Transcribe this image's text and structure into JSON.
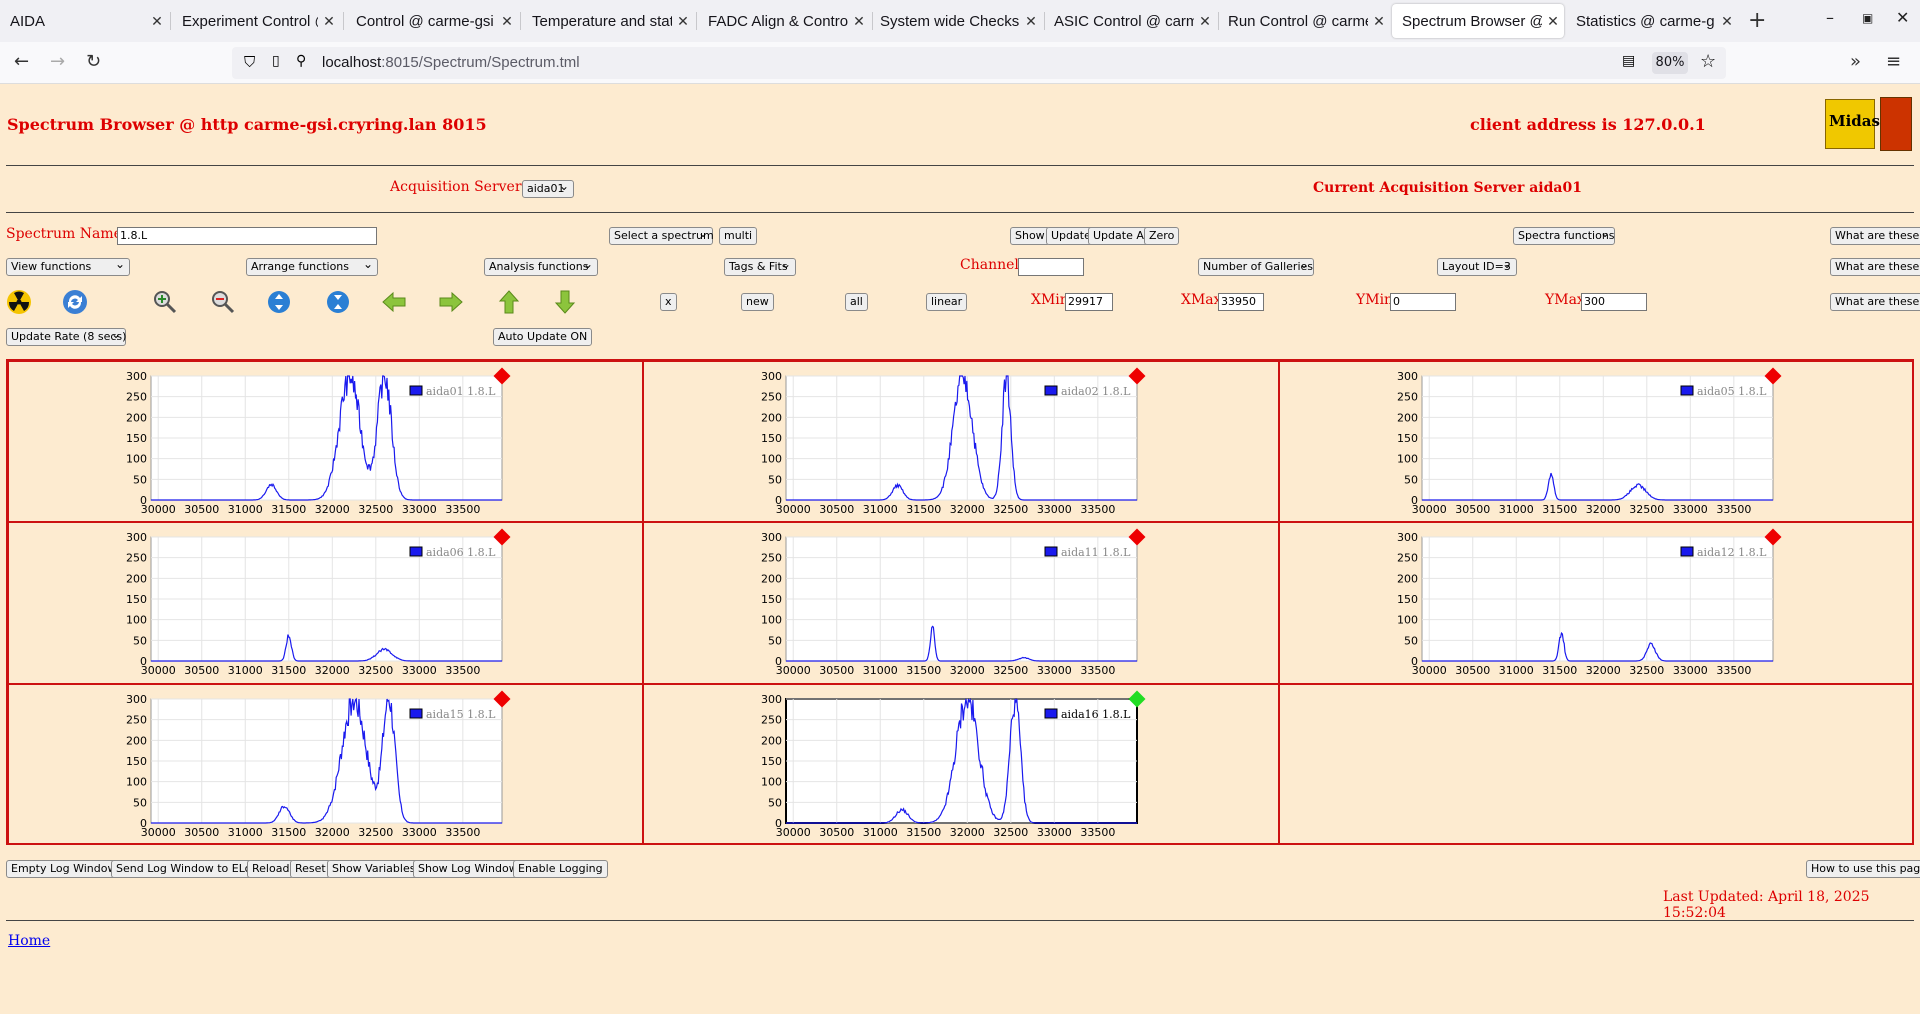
{
  "browser": {
    "tabs": [
      {
        "label": "AIDA",
        "active": false
      },
      {
        "label": "Experiment Control @",
        "active": false
      },
      {
        "label": "Control @ carme-gsi",
        "active": false
      },
      {
        "label": "Temperature and stat",
        "active": false
      },
      {
        "label": "FADC Align & Control",
        "active": false
      },
      {
        "label": "System wide Checks (",
        "active": false
      },
      {
        "label": "ASIC Control @ carm",
        "active": false
      },
      {
        "label": "Run Control @ carme",
        "active": false
      },
      {
        "label": "Spectrum Browser @",
        "active": true
      },
      {
        "label": "Statistics @ carme-g",
        "active": false
      }
    ],
    "url_host": "localhost",
    "url_path": ":8015/Spectrum/Spectrum.tml",
    "zoom": "80%"
  },
  "header": {
    "title": "Spectrum Browser @ http carme-gsi.cryring.lan 8015",
    "client": "client address is 127.0.0.1",
    "logo_text": "Midas"
  },
  "acq": {
    "label": "Acquisition Servers",
    "server_select": "aida01",
    "current": "Current Acquisition Server aida01"
  },
  "controls": {
    "spectrum_name_label": "Spectrum Name:",
    "spectrum_name_value": "1.8.L",
    "select_spectrum": "Select a spectrum",
    "multi": "multi",
    "show": "Show",
    "update": "Update",
    "update_all": "Update All",
    "zero": "Zero",
    "spectra_functions": "Spectra functions",
    "what1": "What are these?",
    "view_functions": "View functions",
    "arrange_functions": "Arrange functions",
    "analysis_functions": "Analysis functions",
    "tags_fits": "Tags & Fits",
    "channel_label": "Channel:",
    "channel_value": "",
    "number_galleries": "Number of Galleries",
    "layout": "Layout ID=3",
    "what2": "What are these?",
    "x": "x",
    "new": "new",
    "all": "all",
    "linear": "linear",
    "xmin_label": "XMin",
    "xmin_value": "29917",
    "xmax_label": "XMax",
    "xmax_value": "33950",
    "ymin_label": "YMin",
    "ymin_value": "0",
    "ymax_label": "YMax",
    "ymax_value": "300",
    "what3": "What are these?",
    "update_rate": "Update Rate (8 secs)",
    "auto_update": "Auto Update ON"
  },
  "chart_data": [
    {
      "type": "line",
      "legend": "aida01 1.8.L",
      "status_color": "#ee0000",
      "xlim": [
        29917,
        33950
      ],
      "ylim": [
        0,
        300
      ],
      "x_ticks": [
        "30000",
        "30500",
        "31000",
        "31500",
        "32000",
        "32500",
        "33000",
        "33500"
      ],
      "y_ticks": [
        "0",
        "50",
        "100",
        "150",
        "200",
        "250",
        "300"
      ],
      "peaks": [
        [
          31300,
          38,
          60
        ],
        [
          32200,
          300,
          120
        ],
        [
          32600,
          300,
          80
        ]
      ]
    },
    {
      "type": "line",
      "legend": "aida02 1.8.L",
      "status_color": "#ee0000",
      "xlim": [
        29917,
        33950
      ],
      "ylim": [
        0,
        300
      ],
      "x_ticks": [
        "30000",
        "30500",
        "31000",
        "31500",
        "32000",
        "32500",
        "33000",
        "33500"
      ],
      "y_ticks": [
        "0",
        "50",
        "100",
        "150",
        "200",
        "250",
        "300"
      ],
      "peaks": [
        [
          31200,
          35,
          60
        ],
        [
          31950,
          300,
          110
        ],
        [
          32450,
          300,
          50
        ]
      ]
    },
    {
      "type": "line",
      "legend": "aida05 1.8.L",
      "status_color": "#ee0000",
      "xlim": [
        29917,
        33950
      ],
      "ylim": [
        0,
        300
      ],
      "x_ticks": [
        "30000",
        "30500",
        "31000",
        "31500",
        "32000",
        "32500",
        "33000",
        "33500"
      ],
      "y_ticks": [
        "0",
        "50",
        "100",
        "150",
        "200",
        "250",
        "300"
      ],
      "peaks": [
        [
          31400,
          65,
          30
        ],
        [
          32400,
          35,
          90
        ]
      ]
    },
    {
      "type": "line",
      "legend": "aida06 1.8.L",
      "status_color": "#ee0000",
      "xlim": [
        29917,
        33950
      ],
      "ylim": [
        0,
        300
      ],
      "x_ticks": [
        "30000",
        "30500",
        "31000",
        "31500",
        "32000",
        "32500",
        "33000",
        "33500"
      ],
      "y_ticks": [
        "0",
        "50",
        "100",
        "150",
        "200",
        "250",
        "300"
      ],
      "peaks": [
        [
          31500,
          62,
          30
        ],
        [
          32600,
          28,
          90
        ]
      ]
    },
    {
      "type": "line",
      "legend": "aida11 1.8.L",
      "status_color": "#ee0000",
      "xlim": [
        29917,
        33950
      ],
      "ylim": [
        0,
        300
      ],
      "x_ticks": [
        "30000",
        "30500",
        "31000",
        "31500",
        "32000",
        "32500",
        "33000",
        "33500"
      ],
      "y_ticks": [
        "0",
        "50",
        "100",
        "150",
        "200",
        "250",
        "300"
      ],
      "peaks": [
        [
          31600,
          80,
          25
        ],
        [
          32650,
          8,
          60
        ]
      ]
    },
    {
      "type": "line",
      "legend": "aida12 1.8.L",
      "status_color": "#ee0000",
      "xlim": [
        29917,
        33950
      ],
      "ylim": [
        0,
        300
      ],
      "x_ticks": [
        "30000",
        "30500",
        "31000",
        "31500",
        "32000",
        "32500",
        "33000",
        "33500"
      ],
      "y_ticks": [
        "0",
        "50",
        "100",
        "150",
        "200",
        "250",
        "300"
      ],
      "peaks": [
        [
          31520,
          68,
          28
        ],
        [
          32550,
          40,
          50
        ]
      ]
    },
    {
      "type": "line",
      "legend": "aida15 1.8.L",
      "status_color": "#ee0000",
      "xlim": [
        29917,
        33950
      ],
      "ylim": [
        0,
        300
      ],
      "x_ticks": [
        "30000",
        "30500",
        "31000",
        "31500",
        "32000",
        "32500",
        "33000",
        "33500"
      ],
      "y_ticks": [
        "0",
        "50",
        "100",
        "150",
        "200",
        "250",
        "300"
      ],
      "peaks": [
        [
          31450,
          40,
          60
        ],
        [
          32250,
          300,
          140
        ],
        [
          32650,
          300,
          70
        ]
      ]
    },
    {
      "type": "line",
      "legend": "aida16 1.8.L",
      "status_color": "#22dd22",
      "xlim": [
        29917,
        33950
      ],
      "ylim": [
        0,
        300
      ],
      "x_ticks": [
        "30000",
        "30500",
        "31000",
        "31500",
        "32000",
        "32500",
        "33000",
        "33500"
      ],
      "y_ticks": [
        "0",
        "50",
        "100",
        "150",
        "200",
        "250",
        "300"
      ],
      "peaks": [
        [
          31250,
          32,
          70
        ],
        [
          32000,
          300,
          130
        ],
        [
          32550,
          300,
          60
        ]
      ]
    }
  ],
  "footer": {
    "empty_log": "Empty Log Window",
    "send_log": "Send Log Window to ELog",
    "reload": "Reload",
    "reset": "Reset",
    "show_vars": "Show Variables",
    "show_log": "Show Log Window",
    "enable_logging": "Enable Logging",
    "how_to": "How to use this page",
    "last_updated": "Last Updated: April 18, 2025 15:52:04",
    "home": "Home"
  }
}
